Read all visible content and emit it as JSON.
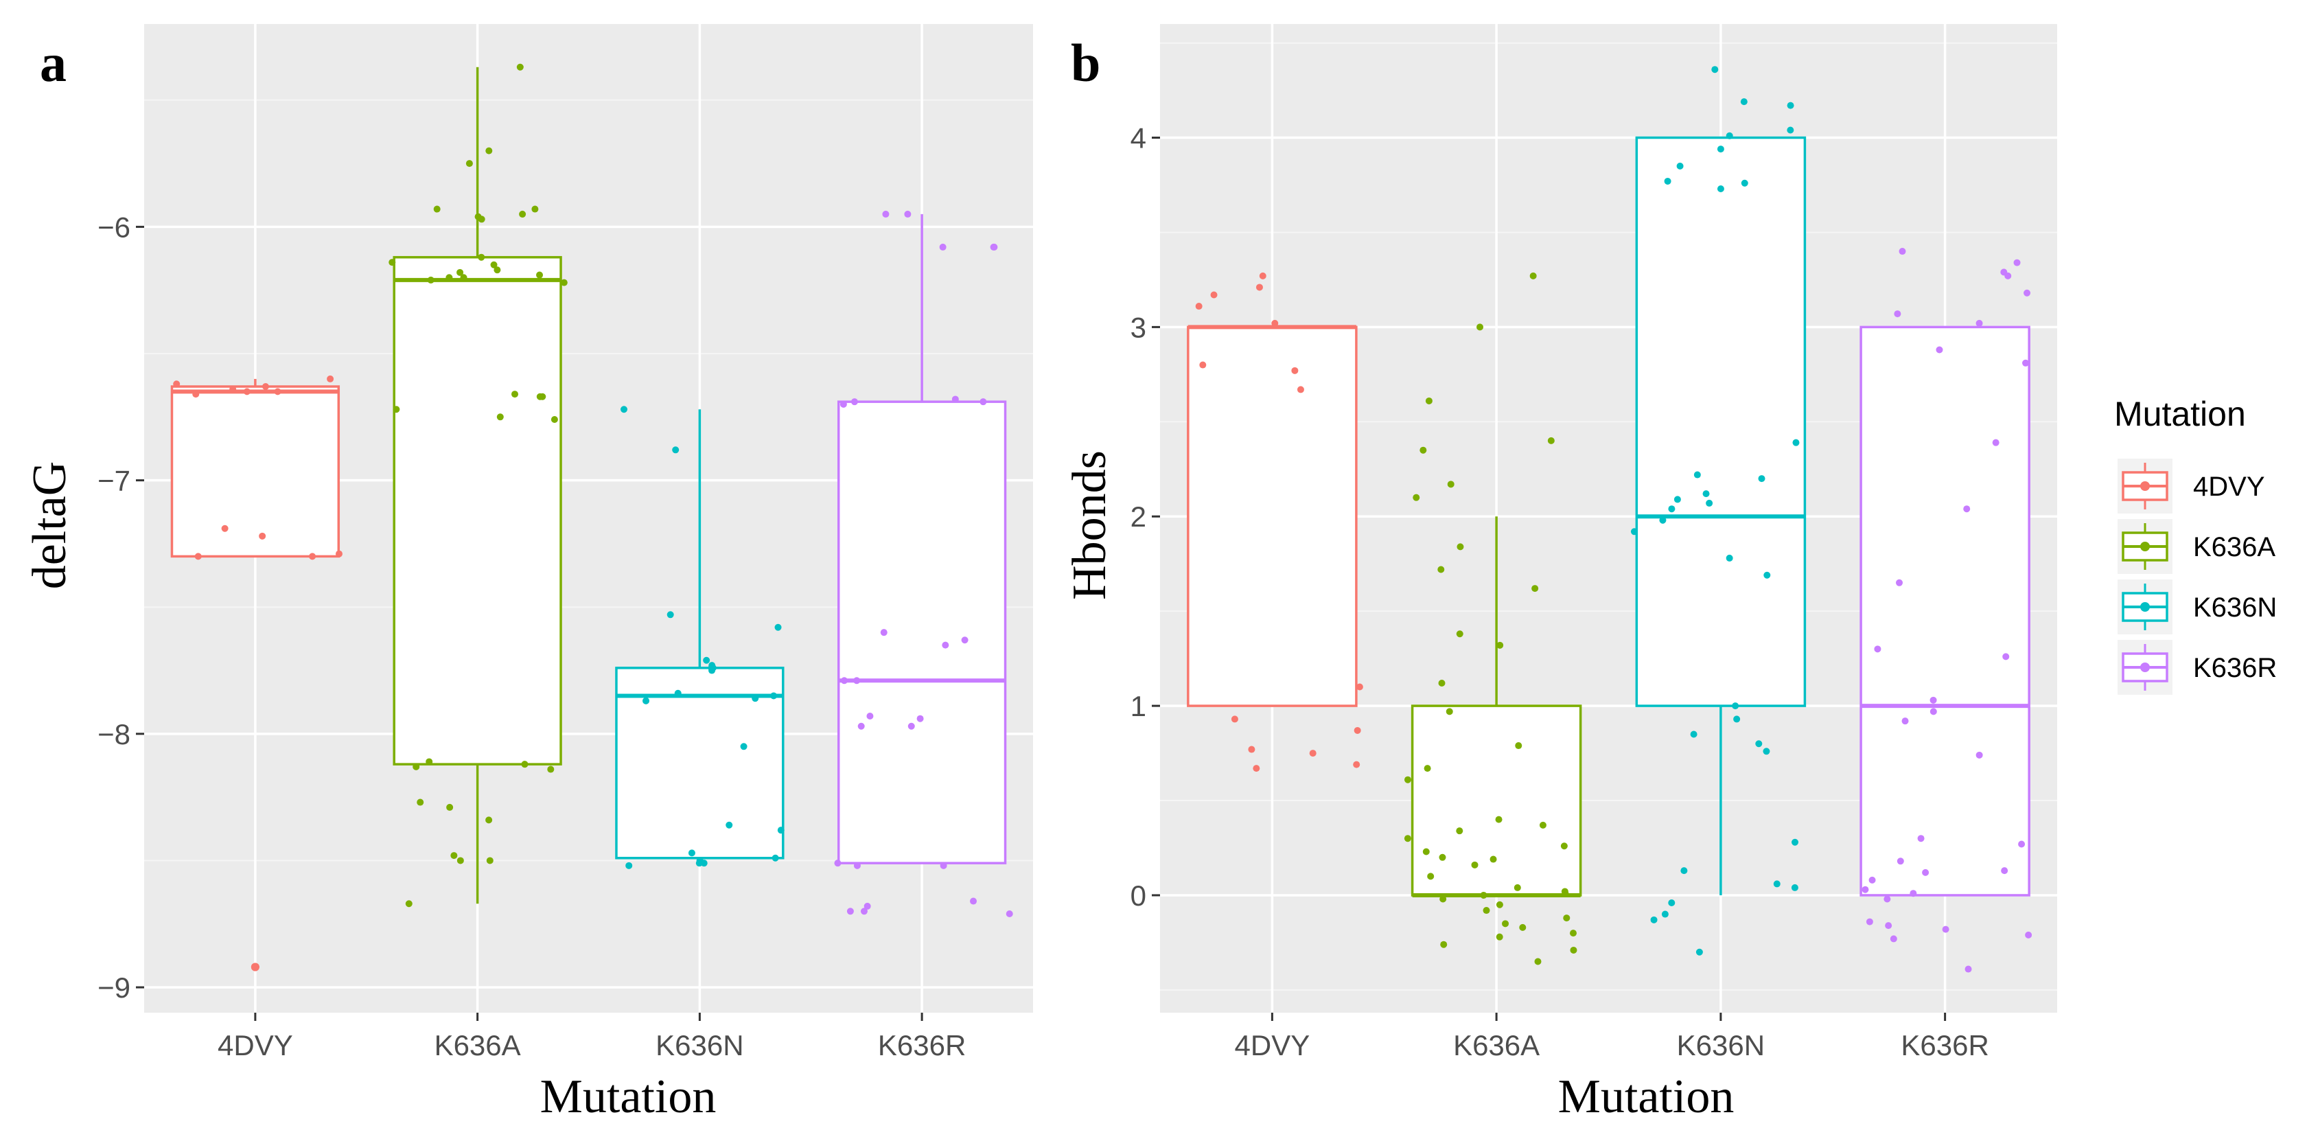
{
  "chart_data": [
    {
      "type": "box",
      "panel_label": "a",
      "categories": [
        "4DVY",
        "K636A",
        "K636N",
        "K636R"
      ],
      "xlabel": "Mutation",
      "ylabel": "deltaG",
      "yticks": [
        -9,
        -8,
        -7,
        -6
      ],
      "ylim": [
        -9.1,
        -5.2
      ],
      "boxes": [
        {
          "category": "4DVY",
          "min": -7.3,
          "q1": -7.3,
          "median": -6.65,
          "q3": -6.63,
          "max": -6.6
        },
        {
          "category": "K636A",
          "min": -8.67,
          "q1": -8.12,
          "median": -6.21,
          "q3": -6.12,
          "max": -5.37
        },
        {
          "category": "K636N",
          "min": -8.5,
          "q1": -8.49,
          "median": -7.85,
          "q3": -7.74,
          "max": -6.72
        },
        {
          "category": "K636R",
          "min": -8.51,
          "q1": -8.51,
          "median": -7.79,
          "q3": -6.69,
          "max": -5.95
        }
      ],
      "outliers": [
        {
          "category": "4DVY",
          "values": [
            -8.92,
            -8.92
          ]
        }
      ],
      "points": [
        {
          "category": "4DVY",
          "values": [
            -6.6,
            -6.62,
            -6.63,
            -6.64,
            -6.65,
            -6.65,
            -6.66,
            -7.19,
            -7.22,
            -7.29,
            -7.3,
            -7.3
          ]
        },
        {
          "category": "K636A",
          "values": [
            -5.37,
            -5.7,
            -5.75,
            -5.93,
            -5.93,
            -5.95,
            -5.96,
            -5.97,
            -6.12,
            -6.14,
            -6.15,
            -6.17,
            -6.18,
            -6.19,
            -6.2,
            -6.2,
            -6.21,
            -6.22,
            -6.66,
            -6.67,
            -6.67,
            -6.72,
            -6.75,
            -6.76,
            -8.11,
            -8.12,
            -8.13,
            -8.14,
            -8.27,
            -8.29,
            -8.34,
            -8.48,
            -8.5,
            -8.5,
            -8.67
          ]
        },
        {
          "category": "K636N",
          "values": [
            -6.72,
            -6.88,
            -7.53,
            -7.58,
            -7.71,
            -7.73,
            -7.74,
            -7.74,
            -7.75,
            -7.84,
            -7.85,
            -7.86,
            -7.87,
            -8.05,
            -8.36,
            -8.38,
            -8.47,
            -8.49,
            -8.5,
            -8.51,
            -8.51,
            -8.52
          ]
        },
        {
          "category": "K636R",
          "values": [
            -5.95,
            -5.95,
            -6.08,
            -6.08,
            -6.08,
            -6.68,
            -6.69,
            -6.69,
            -6.7,
            -7.6,
            -7.63,
            -7.65,
            -7.79,
            -7.79,
            -7.93,
            -7.94,
            -7.97,
            -7.97,
            -8.51,
            -8.52,
            -8.52,
            -8.66,
            -8.68,
            -8.7,
            -8.7,
            -8.71
          ]
        }
      ]
    },
    {
      "type": "box",
      "panel_label": "b",
      "categories": [
        "4DVY",
        "K636A",
        "K636N",
        "K636R"
      ],
      "xlabel": "Mutation",
      "ylabel": "Hbonds",
      "yticks": [
        0,
        1,
        2,
        3,
        4
      ],
      "ylim": [
        -0.62,
        4.6
      ],
      "boxes": [
        {
          "category": "4DVY",
          "min": 1,
          "q1": 1,
          "median": 3,
          "q3": 3,
          "max": 3
        },
        {
          "category": "K636A",
          "min": 0,
          "q1": 0,
          "median": 0,
          "q3": 1,
          "max": 2
        },
        {
          "category": "K636N",
          "min": 0,
          "q1": 1,
          "median": 2,
          "q3": 4,
          "max": 4
        },
        {
          "category": "K636R",
          "min": 0,
          "q1": 0,
          "median": 1,
          "q3": 3,
          "max": 3
        }
      ],
      "outliers": [],
      "points": [
        {
          "category": "4DVY",
          "values": [
            3.27,
            3.21,
            3.17,
            3.11,
            3.02,
            2.8,
            2.77,
            2.67,
            1.1,
            0.93,
            0.87,
            0.77,
            0.75,
            0.69,
            0.67
          ]
        },
        {
          "category": "K636A",
          "values": [
            3.27,
            3.0,
            2.61,
            2.4,
            2.35,
            2.17,
            2.1,
            1.84,
            1.72,
            1.62,
            1.38,
            1.32,
            1.12,
            0.97,
            0.79,
            0.67,
            0.61,
            0.4,
            0.37,
            0.34,
            0.3,
            0.26,
            0.23,
            0.2,
            0.19,
            0.16,
            0.1,
            0.04,
            0.02,
            0.01,
            0.0,
            -0.02,
            -0.05,
            -0.08,
            -0.12,
            -0.15,
            -0.17,
            -0.2,
            -0.22,
            -0.26,
            -0.29,
            -0.35
          ]
        },
        {
          "category": "K636N",
          "values": [
            4.36,
            4.19,
            4.17,
            4.04,
            4.01,
            3.94,
            3.85,
            3.77,
            3.76,
            3.73,
            2.39,
            2.22,
            2.2,
            2.12,
            2.09,
            2.07,
            2.04,
            1.98,
            1.92,
            1.78,
            1.69,
            1.0,
            0.93,
            0.85,
            0.8,
            0.76,
            0.28,
            0.13,
            0.06,
            0.04,
            -0.04,
            -0.1,
            -0.13,
            -0.3
          ]
        },
        {
          "category": "K636R",
          "values": [
            3.4,
            3.34,
            3.29,
            3.27,
            3.18,
            3.07,
            3.02,
            2.88,
            2.81,
            2.39,
            2.04,
            1.65,
            1.3,
            1.26,
            1.03,
            0.97,
            0.92,
            0.74,
            0.3,
            0.27,
            0.18,
            0.13,
            0.12,
            0.08,
            0.03,
            0.01,
            -0.02,
            -0.14,
            -0.16,
            -0.18,
            -0.21,
            -0.23,
            -0.39
          ]
        }
      ]
    }
  ],
  "legend": {
    "title": "Mutation",
    "items": [
      {
        "label": "4DVY",
        "color": "#F8766D"
      },
      {
        "label": "K636A",
        "color": "#7CAE00"
      },
      {
        "label": "K636N",
        "color": "#00BFC4"
      },
      {
        "label": "K636R",
        "color": "#C77CFF"
      }
    ]
  }
}
